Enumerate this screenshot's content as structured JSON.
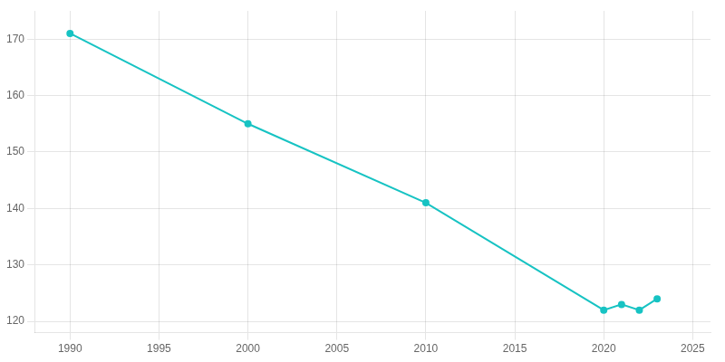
{
  "chart_data": {
    "type": "line",
    "x": [
      1990,
      2000,
      2010,
      2020,
      2021,
      2022,
      2023
    ],
    "values": [
      171,
      155,
      141,
      122,
      123,
      122,
      124
    ],
    "color": "#17c3c3",
    "marker": "circle",
    "xlim": [
      1988,
      2026
    ],
    "ylim": [
      118,
      175
    ],
    "xticks": [
      1990,
      1995,
      2000,
      2005,
      2010,
      2015,
      2020,
      2025
    ],
    "yticks": [
      120,
      130,
      140,
      150,
      160,
      170
    ],
    "grid": true
  }
}
